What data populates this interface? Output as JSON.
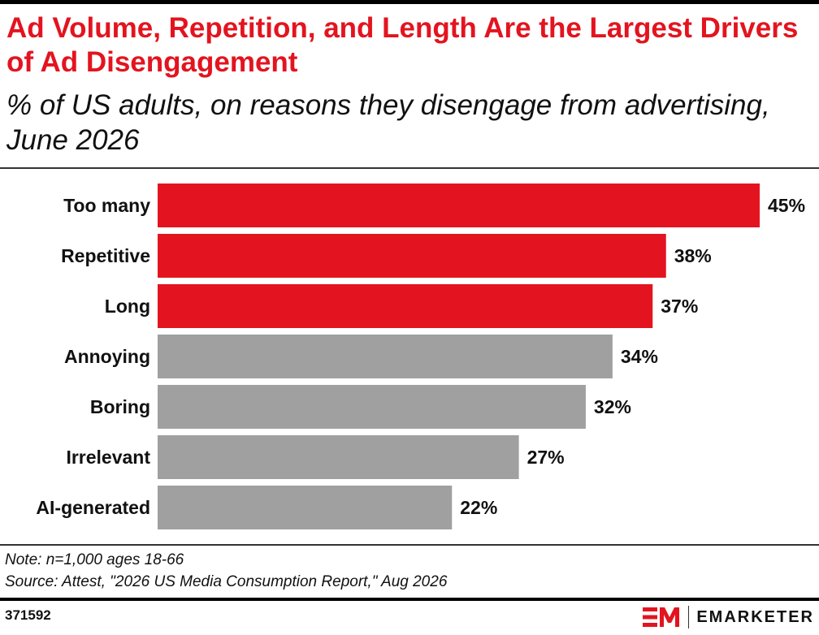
{
  "header": {
    "title": "Ad Volume, Repetition, and Length Are the Largest Drivers of Ad Disengagement",
    "subtitle": "% of US adults, on reasons they disengage from advertising, June 2026"
  },
  "chart_data": {
    "type": "bar",
    "orientation": "horizontal",
    "categories": [
      "Too many",
      "Repetitive",
      "Long",
      "Annoying",
      "Boring",
      "Irrelevant",
      "AI-generated"
    ],
    "values": [
      45,
      38,
      37,
      34,
      32,
      27,
      22
    ],
    "value_labels": [
      "45%",
      "38%",
      "37%",
      "34%",
      "32%",
      "27%",
      "22%"
    ],
    "highlight_count": 3,
    "colors": {
      "highlight": "#e3141f",
      "default": "#a0a0a0"
    },
    "xlim": [
      0,
      45
    ],
    "grid": false,
    "legend": "none"
  },
  "footer": {
    "note": "Note: n=1,000 ages 18-66",
    "source": "Source: Attest, \"2026 US Media Consumption Report,\" Aug 2026",
    "chart_id": "371592",
    "brand": "EMARKETER",
    "brand_icon": "em-logo-icon"
  }
}
